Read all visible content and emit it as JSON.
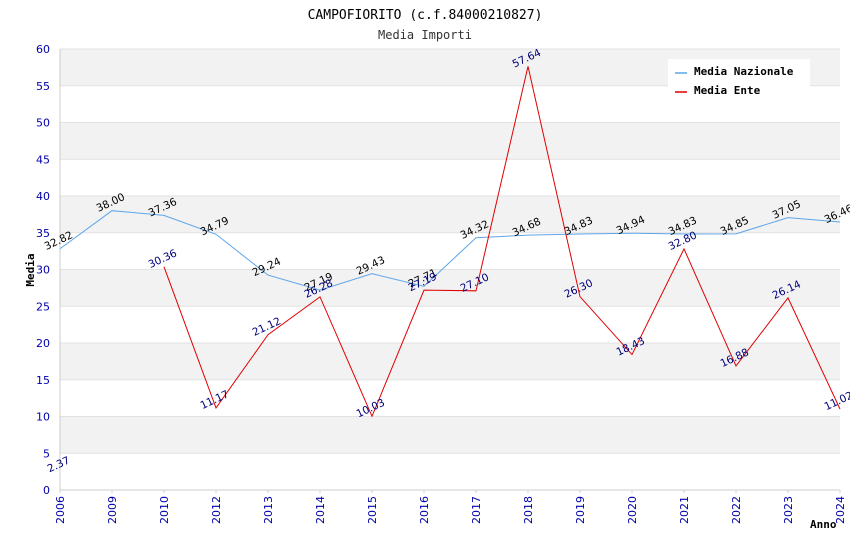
{
  "chart_data": {
    "type": "line",
    "title": "CAMPOFIORITO (c.f.84000210827)",
    "subtitle": "Media Importi",
    "xlabel": "Anno",
    "ylabel": "Media",
    "ylim": [
      0,
      60
    ],
    "yticks": [
      0,
      5,
      10,
      15,
      20,
      25,
      30,
      35,
      40,
      45,
      50,
      55,
      60
    ],
    "categories": [
      "2006",
      "2009",
      "2010",
      "2012",
      "2013",
      "2014",
      "2015",
      "2016",
      "2017",
      "2018",
      "2019",
      "2020",
      "2021",
      "2022",
      "2023",
      "2024"
    ],
    "series": [
      {
        "name": "Media Nazionale",
        "color": "#5da5e8",
        "values": [
          32.82,
          38.0,
          37.36,
          34.79,
          29.24,
          27.19,
          29.43,
          27.71,
          34.32,
          34.68,
          34.83,
          34.94,
          34.83,
          34.85,
          37.05,
          36.46
        ],
        "labels": [
          "32.82",
          "38.00",
          "37.36",
          "34.79",
          "29.24",
          "27.19",
          "29.43",
          "27.71",
          "34.32",
          "34.68",
          "34.83",
          "34.94",
          "34.83",
          "34.85",
          "37.05",
          "36.46"
        ]
      },
      {
        "name": "Media Ente",
        "color": "#e00000",
        "values": [
          2.37,
          null,
          30.36,
          11.17,
          21.12,
          26.28,
          10.03,
          27.19,
          27.1,
          57.64,
          26.3,
          18.43,
          32.8,
          16.88,
          26.14,
          11.02
        ],
        "labels": [
          "2.37",
          null,
          "30.36",
          "11.17",
          "21.12",
          "26.28",
          "10.03",
          "27.19",
          "27.10",
          "57.64",
          "26.30",
          "18.43",
          "32.80",
          "16.88",
          "26.14",
          "11.02"
        ]
      }
    ],
    "legend_position": "top-right",
    "grid": true
  }
}
